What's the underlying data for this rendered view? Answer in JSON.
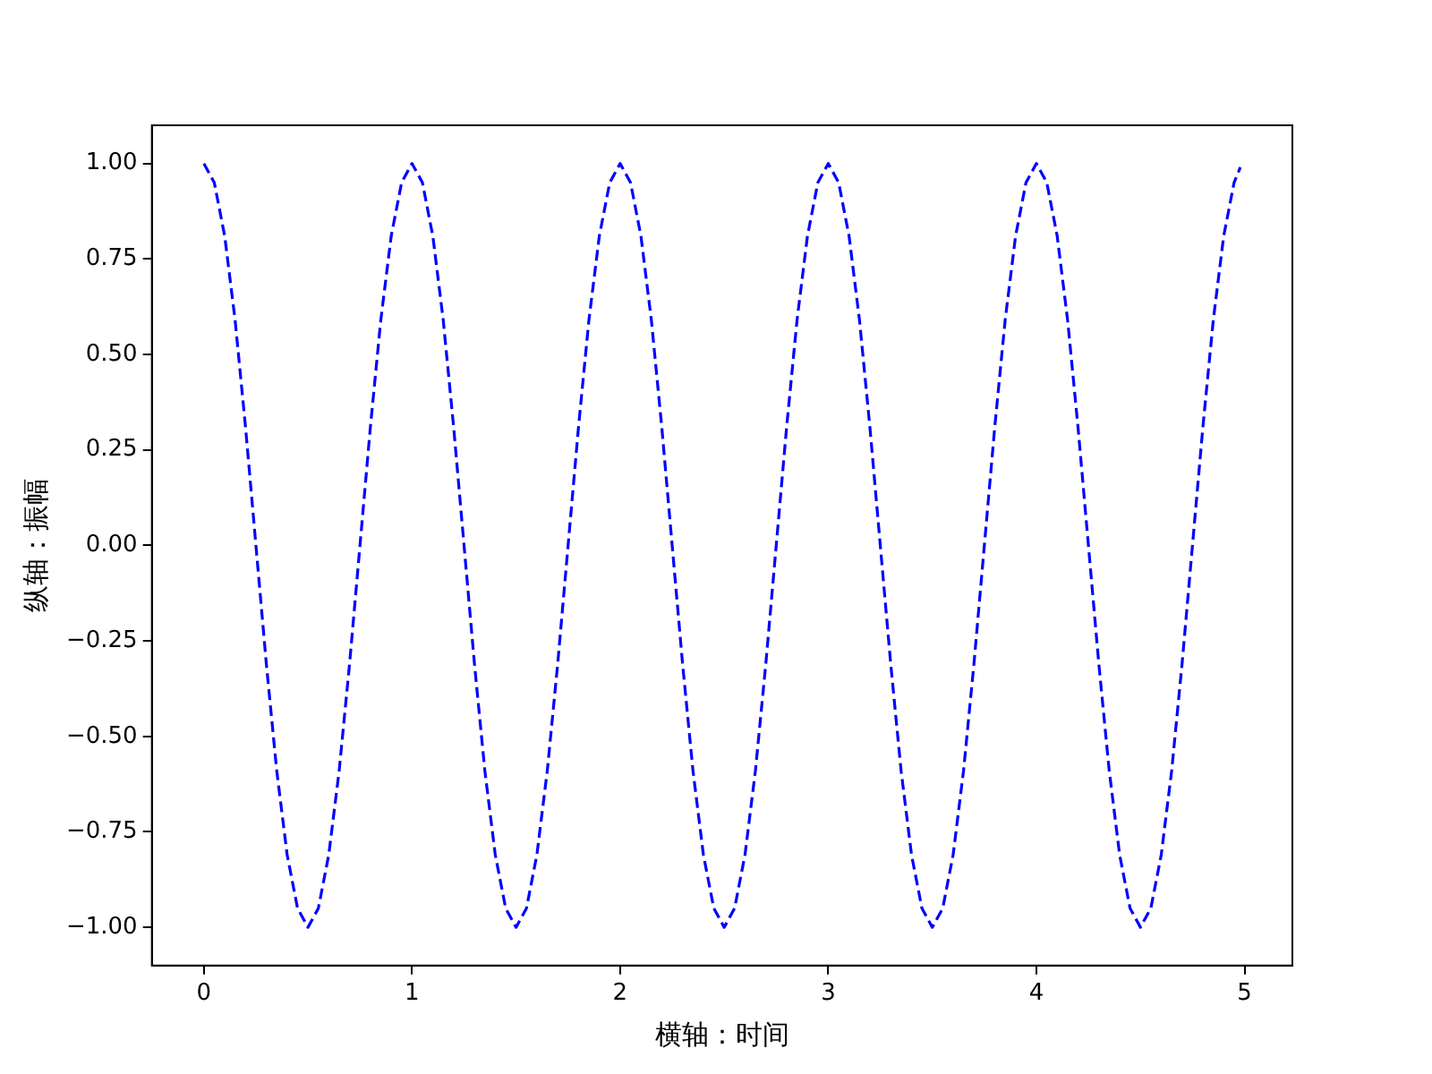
{
  "chart_data": {
    "type": "line",
    "xlabel": "横轴：时间",
    "ylabel": "纵轴：振幅",
    "x": [
      0,
      0.05,
      0.1,
      0.15,
      0.2,
      0.25,
      0.3,
      0.35,
      0.4,
      0.45,
      0.5,
      0.55,
      0.6,
      0.65,
      0.7,
      0.75,
      0.8,
      0.85,
      0.9,
      0.95,
      1,
      1.05,
      1.1,
      1.15,
      1.2,
      1.25,
      1.3,
      1.35,
      1.4,
      1.45,
      1.5,
      1.55,
      1.6,
      1.65,
      1.7,
      1.75,
      1.8,
      1.85,
      1.9,
      1.95,
      2,
      2.05,
      2.1,
      2.15,
      2.2,
      2.25,
      2.3,
      2.35,
      2.4,
      2.45,
      2.5,
      2.55,
      2.6,
      2.65,
      2.7,
      2.75,
      2.8,
      2.85,
      2.9,
      2.95,
      3,
      3.05,
      3.1,
      3.15,
      3.2,
      3.25,
      3.3,
      3.35,
      3.4,
      3.45,
      3.5,
      3.55,
      3.6,
      3.65,
      3.7,
      3.75,
      3.8,
      3.85,
      3.9,
      3.95,
      4,
      4.05,
      4.1,
      4.15,
      4.2,
      4.25,
      4.3,
      4.35,
      4.4,
      4.45,
      4.5,
      4.55,
      4.6,
      4.65,
      4.7,
      4.75,
      4.8,
      4.85,
      4.9,
      4.95,
      4.98
    ],
    "series": [
      {
        "color": "#0000ff",
        "values": [
          1,
          0.95,
          0.81,
          0.59,
          0.31,
          0,
          -0.31,
          -0.59,
          -0.81,
          -0.95,
          -1,
          -0.95,
          -0.81,
          -0.59,
          -0.31,
          0,
          0.31,
          0.59,
          0.81,
          0.95,
          1,
          0.95,
          0.81,
          0.59,
          0.31,
          0,
          -0.31,
          -0.59,
          -0.81,
          -0.95,
          -1,
          -0.95,
          -0.81,
          -0.59,
          -0.31,
          0,
          0.31,
          0.59,
          0.81,
          0.95,
          1,
          0.95,
          0.81,
          0.59,
          0.31,
          0,
          -0.31,
          -0.59,
          -0.81,
          -0.95,
          -1,
          -0.95,
          -0.81,
          -0.59,
          -0.31,
          0,
          0.31,
          0.59,
          0.81,
          0.95,
          1,
          0.95,
          0.81,
          0.59,
          0.31,
          0,
          -0.31,
          -0.59,
          -0.81,
          -0.95,
          -1,
          -0.95,
          -0.81,
          -0.59,
          -0.31,
          0,
          0.31,
          0.59,
          0.81,
          0.95,
          1,
          0.95,
          0.81,
          0.59,
          0.31,
          0,
          -0.31,
          -0.59,
          -0.81,
          -0.95,
          -1,
          -0.95,
          -0.81,
          -0.59,
          -0.31,
          0,
          0.31,
          0.59,
          0.81,
          0.95,
          0.99
        ]
      }
    ],
    "xlim": [
      -0.25,
      5.23
    ],
    "xticks": [
      0,
      1,
      2,
      3,
      4,
      5
    ],
    "ylim": [
      -1.1,
      1.1
    ],
    "yticks": [
      {
        "value": -1,
        "label": "−1.00"
      },
      {
        "value": -0.75,
        "label": "−0.75"
      },
      {
        "value": -0.5,
        "label": "−0.50"
      },
      {
        "value": -0.25,
        "label": "−0.25"
      },
      {
        "value": 0,
        "label": "0.00"
      },
      {
        "value": 0.25,
        "label": "0.25"
      },
      {
        "value": 0.5,
        "label": "0.50"
      },
      {
        "value": 0.75,
        "label": "0.75"
      },
      {
        "value": 1,
        "label": "1.00"
      }
    ],
    "grid": false,
    "legend": false,
    "marker": "none",
    "line_style": "dashed"
  }
}
